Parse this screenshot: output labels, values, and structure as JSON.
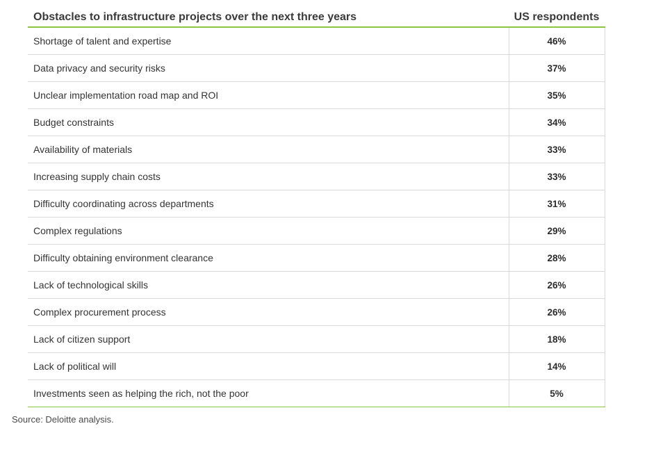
{
  "table": {
    "header_label": "Obstacles to infrastructure projects over the next three years",
    "header_value": "US respondents"
  },
  "chart_data": {
    "type": "table",
    "columns": [
      "Obstacles to infrastructure projects over the next three years",
      "US respondents"
    ],
    "rows": [
      {
        "label": "Shortage of talent and expertise",
        "value": "46%"
      },
      {
        "label": "Data privacy and security risks",
        "value": "37%"
      },
      {
        "label": "Unclear implementation road map and ROI",
        "value": "35%"
      },
      {
        "label": "Budget constraints",
        "value": "34%"
      },
      {
        "label": "Availability of materials",
        "value": "33%"
      },
      {
        "label": "Increasing supply chain costs",
        "value": "33%"
      },
      {
        "label": "Difficulty coordinating across departments",
        "value": "31%"
      },
      {
        "label": "Complex regulations",
        "value": "29%"
      },
      {
        "label": "Difficulty obtaining environment clearance",
        "value": "28%"
      },
      {
        "label": "Lack of technological skills",
        "value": "26%"
      },
      {
        "label": "Complex procurement process",
        "value": "26%"
      },
      {
        "label": "Lack of citizen support",
        "value": "18%"
      },
      {
        "label": "Lack of political will",
        "value": "14%"
      },
      {
        "label": "Investments seen as helping the rich, not the poor",
        "value": "5%"
      }
    ]
  },
  "source": "Source: Deloitte analysis.",
  "colors": {
    "accent_rule": "#8cc63f",
    "grid_line": "#d9d9d9"
  }
}
